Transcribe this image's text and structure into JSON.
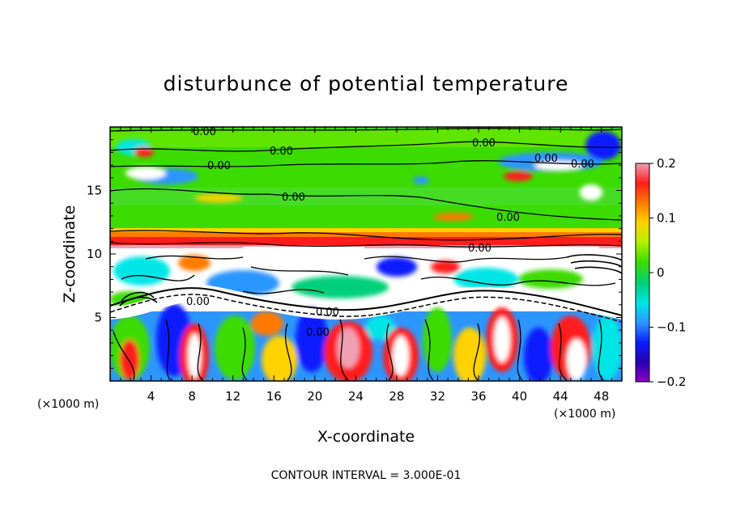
{
  "chart_data": {
    "type": "heatmap",
    "title": "disturbunce of potential temperature",
    "xlabel": "X-coordinate",
    "ylabel": "Z-coordinate",
    "x_unit": "(×1000 m)",
    "z_unit": "(×1000 m)",
    "xlim": [
      0,
      50
    ],
    "ylim": [
      0,
      20
    ],
    "xticks": [
      4,
      8,
      12,
      16,
      20,
      24,
      28,
      32,
      36,
      40,
      44,
      48
    ],
    "yticks": [
      5,
      10,
      15
    ],
    "colorbar": {
      "range": [
        -0.2,
        0.2
      ],
      "ticks": [
        0.2,
        0.1,
        0,
        -0.1,
        -0.2
      ],
      "tick_labels": [
        "0.2",
        "0.1",
        "0",
        "−0.1",
        "−0.2"
      ],
      "colors": [
        "#f0a0b4",
        "#ff1c1c",
        "#ff7a00",
        "#ffd200",
        "#b4f000",
        "#3cdc00",
        "#00d07a",
        "#00e6e6",
        "#2c96ff",
        "#0a1eff",
        "#2a00b0",
        "#8c00c8"
      ]
    },
    "contour_labels": [
      "0.00",
      "0.00",
      "0.00",
      "0.00",
      "0.00",
      "0.00",
      "0.00",
      "0.00",
      "0.00",
      "0.00",
      "0.00",
      "0.00"
    ],
    "contour_interval_text": "CONTOUR INTERVAL = 3.000E-01"
  }
}
